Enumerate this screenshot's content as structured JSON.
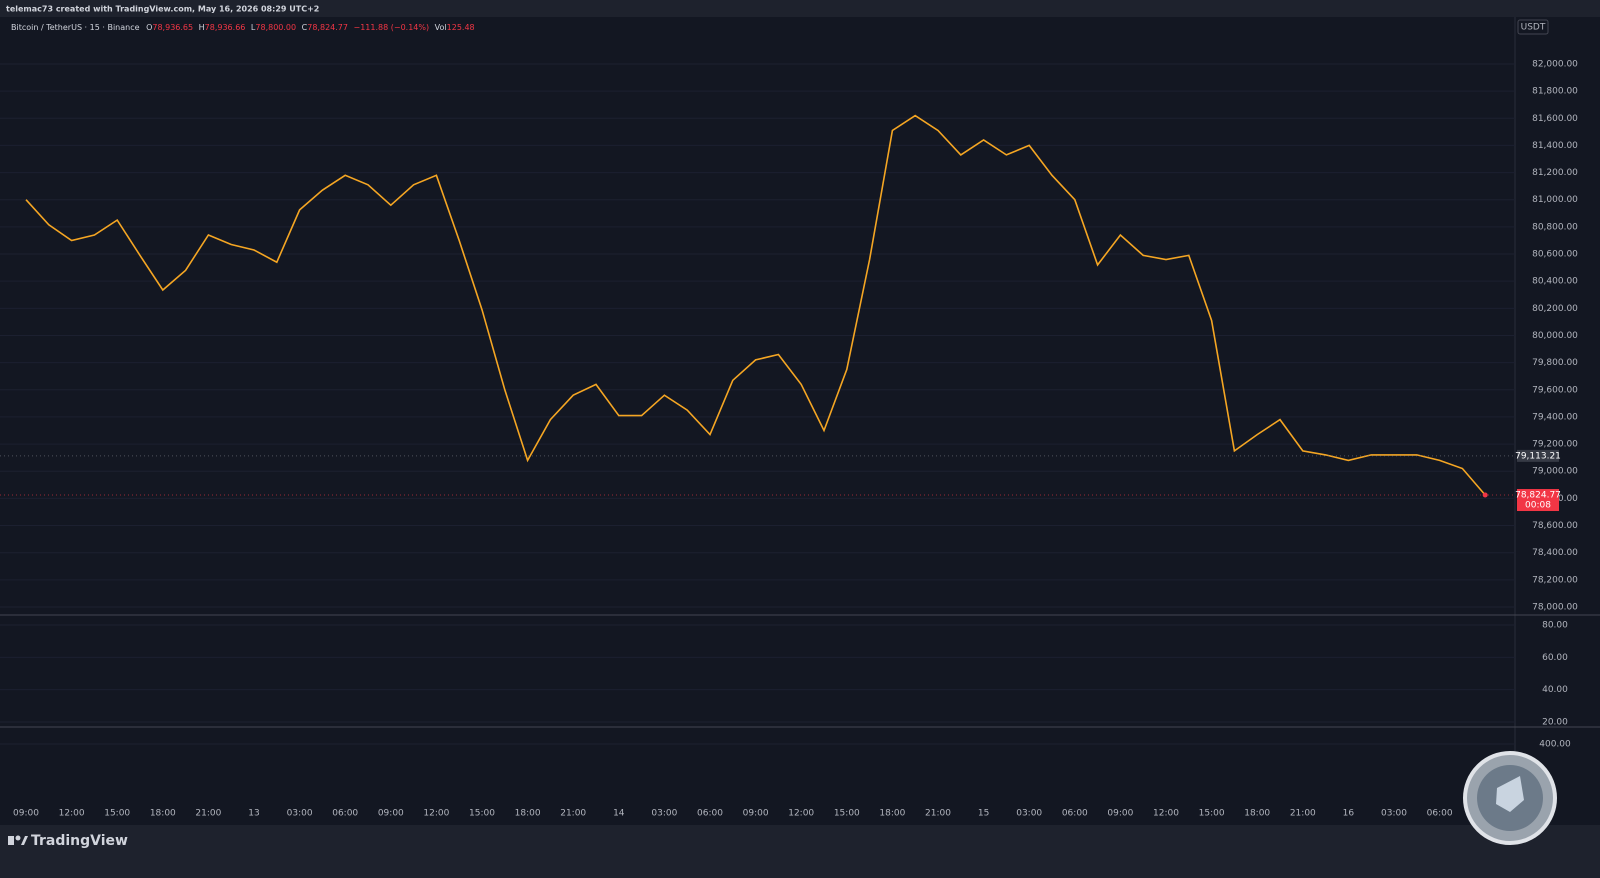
{
  "header": {
    "author_line": "telemac73 created with TradingView.com, May 16, 2026 08:29 UTC+2"
  },
  "legend": {
    "symbol": "Bitcoin / TetherUS · 15 · Binance",
    "ohlc": [
      {
        "label": "O",
        "value": "78,936.65"
      },
      {
        "label": "H",
        "value": "78,936.66"
      },
      {
        "label": "L",
        "value": "78,800.00"
      },
      {
        "label": "C",
        "value": "78,824.77"
      }
    ],
    "change": "−111.88 (−0.14%)",
    "volume": {
      "label": "Vol",
      "value": "125.48"
    }
  },
  "chart_data": {
    "type": "line",
    "currency": "USDT",
    "color": "#f5a623",
    "categories": [
      "09:00",
      null,
      "12:00",
      null,
      "15:00",
      null,
      "18:00",
      null,
      "21:00",
      null,
      "13",
      null,
      "03:00",
      null,
      "06:00",
      null,
      "09:00",
      null,
      "12:00",
      null,
      "15:00",
      null,
      "18:00",
      null,
      "21:00",
      null,
      "14",
      null,
      "03:00",
      null,
      "06:00",
      null,
      "09:00",
      null,
      "12:00",
      null,
      "15:00",
      null,
      "18:00",
      null,
      "21:00",
      null,
      "15",
      null,
      "03:00",
      null,
      "06:00",
      null,
      "09:00",
      null,
      "12:00",
      null,
      "15:00",
      null,
      "18:00",
      null,
      "21:00",
      null,
      "16",
      null,
      "03:00",
      null,
      "06:00",
      null,
      null
    ],
    "values": [
      81000,
      80815,
      80700,
      80740,
      80850,
      80590,
      80335,
      80480,
      80740,
      80670,
      80630,
      80540,
      80925,
      81070,
      81180,
      81110,
      80960,
      81110,
      81180,
      80700,
      80190,
      79600,
      79080,
      79380,
      79560,
      79640,
      79410,
      79410,
      79560,
      79450,
      79270,
      79670,
      79820,
      79860,
      79640,
      79300,
      79750,
      80560,
      81510,
      81620,
      81510,
      81330,
      81440,
      81330,
      81400,
      81180,
      81000,
      80520,
      80740,
      80590,
      80560,
      80590,
      80110,
      79150,
      79270,
      79380,
      79150,
      79120,
      79080,
      79120,
      79120,
      79120,
      79080,
      79020,
      78824.77
    ],
    "ylim": [
      77941,
      82346
    ],
    "yticks": [
      {
        "value": 78000,
        "label": "78,000.00"
      },
      {
        "value": 78200,
        "label": "78,200.00"
      },
      {
        "value": 78400,
        "label": "78,400.00"
      },
      {
        "value": 78600,
        "label": "78,600.00"
      },
      {
        "value": 78800,
        "label": "78,800.00"
      },
      {
        "value": 79000,
        "label": "79,000.00"
      },
      {
        "value": 79200,
        "label": "79,200.00"
      },
      {
        "value": 79400,
        "label": "79,400.00"
      },
      {
        "value": 79600,
        "label": "79,600.00"
      },
      {
        "value": 79800,
        "label": "79,800.00"
      },
      {
        "value": 80000,
        "label": "80,000.00"
      },
      {
        "value": 80200,
        "label": "80,200.00"
      },
      {
        "value": 80400,
        "label": "80,400.00"
      },
      {
        "value": 80600,
        "label": "80,600.00"
      },
      {
        "value": 80800,
        "label": "80,800.00"
      },
      {
        "value": 81000,
        "label": "81,000.00"
      },
      {
        "value": 81200,
        "label": "81,200.00"
      },
      {
        "value": 81400,
        "label": "81,400.00"
      },
      {
        "value": 81600,
        "label": "81,600.00"
      },
      {
        "value": 81800,
        "label": "81,800.00"
      },
      {
        "value": 82000,
        "label": "82,000.00"
      }
    ],
    "price_labels": [
      {
        "value": 79113.21,
        "label": "79,113.21"
      },
      {
        "value": 78824.77,
        "label": "78,824.77",
        "countdown": "00:08"
      }
    ],
    "rsi_ylim": [
      16.9,
      86.2
    ],
    "rsi_yticks": [
      {
        "value": 80,
        "label": "80.00"
      },
      {
        "value": 60,
        "label": "60.00"
      },
      {
        "value": 40,
        "label": "40.00"
      },
      {
        "value": 20,
        "label": "20.00"
      }
    ],
    "macd_ylim": [
      -846,
      662
    ],
    "macd_yticks": [
      {
        "value": 400,
        "label": "400.00"
      }
    ]
  },
  "footer": {
    "brand": "TradingView"
  }
}
